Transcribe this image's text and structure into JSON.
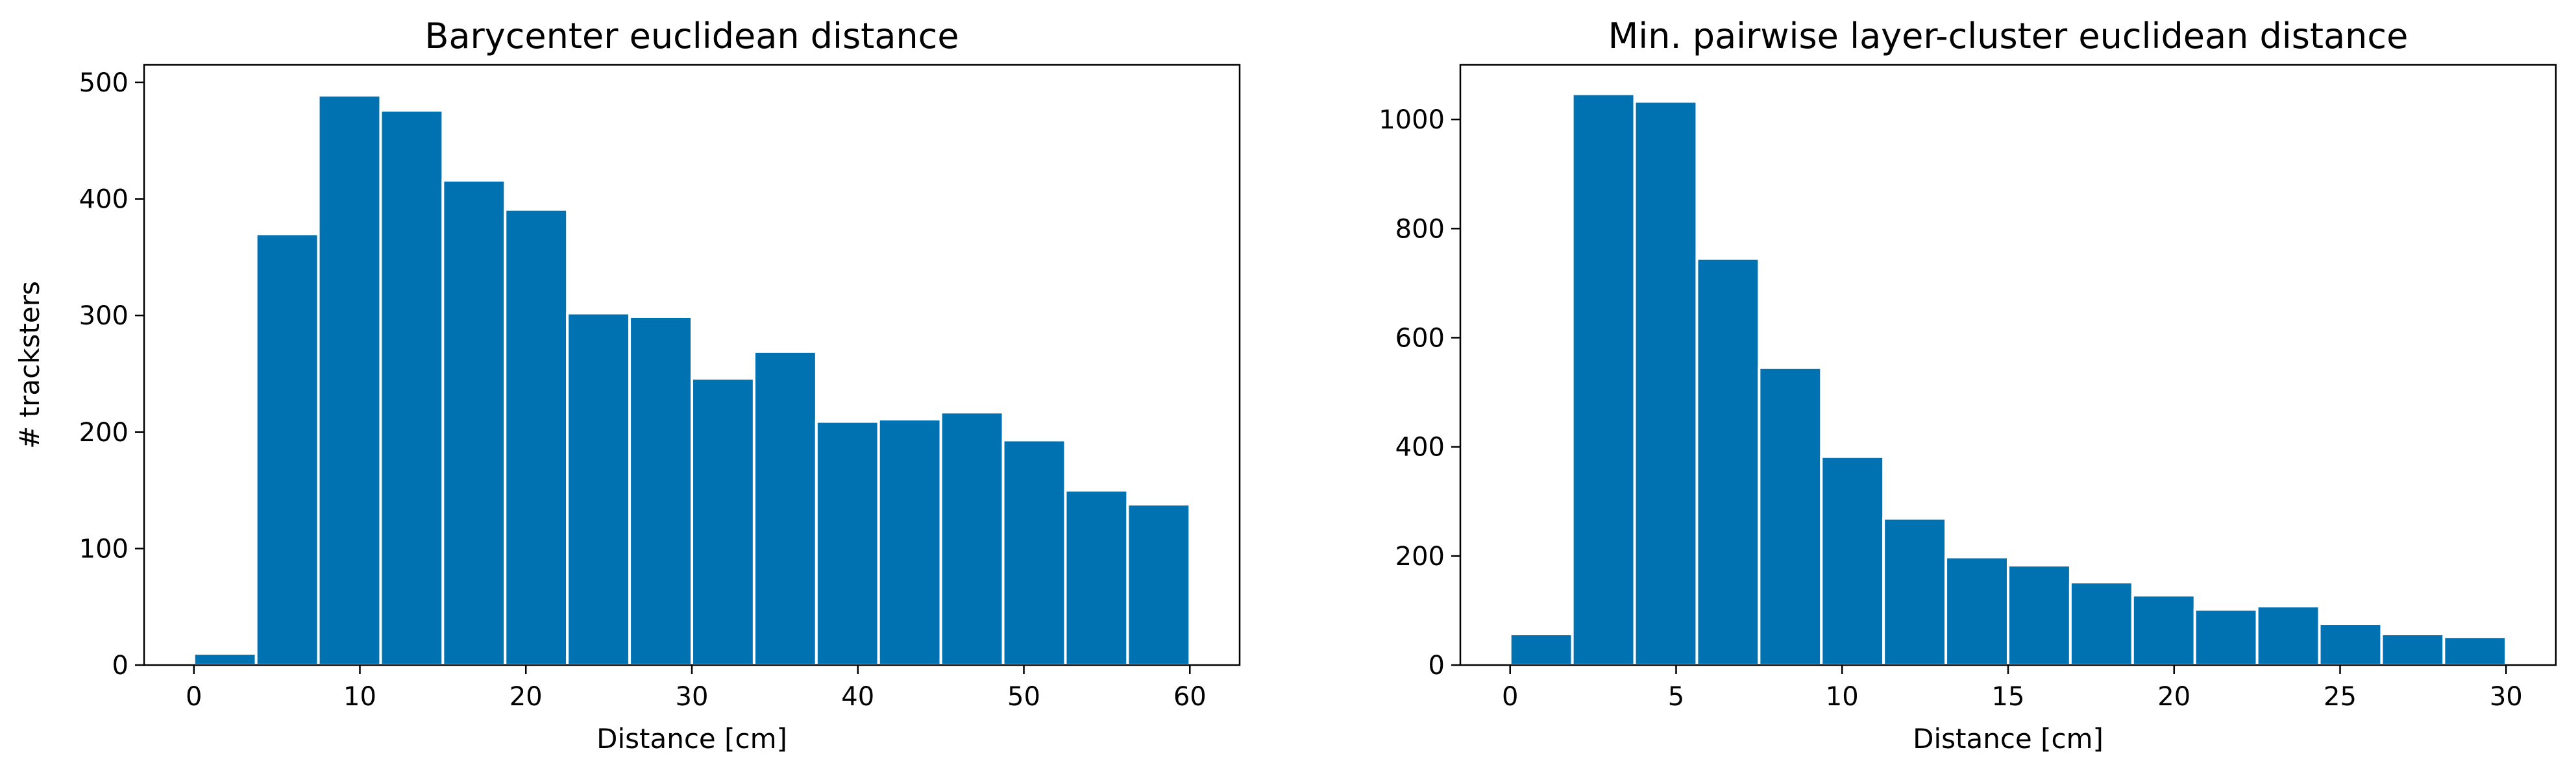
{
  "colors": {
    "bar": "#0072b2",
    "bar_edge": "#ffffff",
    "axes": "#000000",
    "background": "#ffffff"
  },
  "chart_data": [
    {
      "type": "bar",
      "title": "Barycenter euclidean distance",
      "xlabel": "Distance [cm]",
      "ylabel": "# tracksters",
      "xlim": [
        -3,
        63
      ],
      "ylim": [
        0,
        515
      ],
      "xticks": [
        0,
        10,
        20,
        30,
        40,
        50,
        60
      ],
      "yticks": [
        0,
        100,
        200,
        300,
        400,
        500
      ],
      "bin_edges": [
        0,
        3.75,
        7.5,
        11.25,
        15,
        18.75,
        22.5,
        26.25,
        30,
        33.75,
        37.5,
        41.25,
        45,
        48.75,
        52.5,
        56.25,
        60
      ],
      "values": [
        10,
        370,
        489,
        476,
        416,
        391,
        302,
        299,
        246,
        269,
        209,
        211,
        217,
        193,
        150,
        138
      ],
      "grid": false,
      "legend": "none"
    },
    {
      "type": "bar",
      "title": "Min. pairwise layer-cluster euclidean distance",
      "xlabel": "Distance [cm]",
      "ylabel": "",
      "xlim": [
        -1.5,
        31.5
      ],
      "ylim": [
        0,
        1100
      ],
      "xticks": [
        0,
        5,
        10,
        15,
        20,
        25,
        30
      ],
      "yticks": [
        0,
        200,
        400,
        600,
        800,
        1000
      ],
      "bin_edges": [
        0,
        1.875,
        3.75,
        5.625,
        7.5,
        9.375,
        11.25,
        13.125,
        15,
        16.875,
        18.75,
        20.625,
        22.5,
        24.375,
        26.25,
        28.125,
        30
      ],
      "values": [
        57,
        1047,
        1033,
        745,
        545,
        382,
        269,
        198,
        183,
        152,
        128,
        102,
        108,
        76,
        57,
        52
      ],
      "grid": false,
      "legend": "none"
    }
  ]
}
